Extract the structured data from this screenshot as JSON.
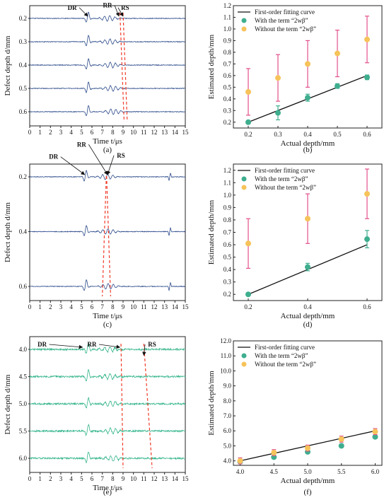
{
  "colors": {
    "axis": "#222222",
    "wave_blue": "#2b4a8a",
    "wave_green": "#35b58c",
    "dashed_red": "#f03c2a",
    "fit_line": "#111111",
    "marker_with": "#3fae8f",
    "marker_without": "#f6c35a",
    "err_without": "#e2508a",
    "err_with": "#3fae8f"
  },
  "chart_data": [
    {
      "id": "a",
      "type": "line",
      "caption": "(a)",
      "xlabel": "Time t/μs",
      "ylabel": "Defect depth d/mm",
      "xlim": [
        0,
        15
      ],
      "xticks": [
        "0",
        "1",
        "2",
        "3",
        "4",
        "5",
        "6",
        "7",
        "8",
        "9",
        "10",
        "11",
        "12",
        "13",
        "14",
        "15"
      ],
      "traces": [
        "0.2",
        "0.3",
        "0.4",
        "0.5",
        "0.6"
      ],
      "wave_color": "blue",
      "pulse_time": 5.6,
      "late_echo": null,
      "annotations": [
        {
          "text": "DR",
          "x": 4.1,
          "row": -0.5,
          "tx": 5.6,
          "trow": 0
        },
        {
          "text": "RR",
          "x": 7.5,
          "row": -0.7,
          "tx": 8.6,
          "trow": 0
        },
        {
          "text": "RS",
          "x": 9.2,
          "row": -0.5,
          "tx": 9.0,
          "trow": 0
        }
      ],
      "dashed_lines": [
        [
          8.7,
          9.1
        ],
        [
          9.0,
          9.4
        ]
      ]
    },
    {
      "id": "b",
      "type": "scatter",
      "caption": "(b)",
      "xlabel": "Actual depth/mm",
      "ylabel": "Estimated depth/mm",
      "xlim": [
        0.15,
        0.65
      ],
      "ylim": [
        0.15,
        1.2
      ],
      "xticks": [
        0.2,
        0.3,
        0.4,
        0.5,
        0.6
      ],
      "xtick_labels": [
        "0.2",
        "0.3",
        "0.4",
        "0.5",
        "0.6"
      ],
      "yticks": [
        0.2,
        0.3,
        0.4,
        0.5,
        0.6,
        0.7,
        0.8,
        0.9,
        1.0,
        1.1,
        1.2
      ],
      "ytick_labels": [
        "0.2",
        "0.3",
        "0.4",
        "0.5",
        "0.6",
        "0.7",
        "0.8",
        "0.9",
        "1.0",
        "1.1",
        "1.2"
      ],
      "legend": [
        "First-order fitting curve",
        "With the term “2wβ”",
        "Without the term “2wβ”"
      ],
      "legend_position": "top-left",
      "fit_line": {
        "x": [
          0.2,
          0.6
        ],
        "y": [
          0.2,
          0.6
        ]
      },
      "series": [
        {
          "x": [
            0.2,
            0.3,
            0.4,
            0.5,
            0.6
          ],
          "values": [
            0.2,
            0.28,
            0.41,
            0.51,
            0.585
          ],
          "err": [
            0.01,
            0.06,
            0.03,
            0.02,
            0.02
          ]
        },
        {
          "x": [
            0.2,
            0.3,
            0.4,
            0.5,
            0.6
          ],
          "values": [
            0.46,
            0.58,
            0.7,
            0.79,
            0.91
          ],
          "err": [
            0.2,
            0.2,
            0.2,
            0.2,
            0.2
          ]
        }
      ]
    },
    {
      "id": "c",
      "type": "line",
      "caption": "(c)",
      "xlabel": "Time t/μs",
      "ylabel": "Defect depth d/mm",
      "xlim": [
        0,
        15
      ],
      "xticks": [
        "0",
        "1",
        "2",
        "3",
        "4",
        "5",
        "6",
        "7",
        "8",
        "9",
        "10",
        "11",
        "12",
        "13",
        "14",
        "15"
      ],
      "traces": [
        "0.2",
        "0.4",
        "0.6"
      ],
      "wave_color": "blue",
      "pulse_time": 5.4,
      "late_echo": 13.5,
      "annotations": [
        {
          "text": "DR",
          "x": 2.3,
          "row": -0.55,
          "tx": 5.3,
          "trow": 0
        },
        {
          "text": "RR",
          "x": 5.0,
          "row": -1.0,
          "tx": 7.5,
          "trow": 0
        },
        {
          "text": "RS",
          "x": 8.8,
          "row": -0.6,
          "tx": 7.5,
          "trow": 0
        }
      ],
      "dashed_lines": [
        [
          7.4,
          7.0
        ],
        [
          7.4,
          7.8
        ]
      ]
    },
    {
      "id": "d",
      "type": "scatter",
      "caption": "(d)",
      "xlabel": "Actual depth/mm",
      "ylabel": "Estimated depth/mm",
      "xlim": [
        0.15,
        0.65
      ],
      "ylim": [
        0.15,
        1.25
      ],
      "xticks": [
        0.2,
        0.4,
        0.6
      ],
      "xtick_labels": [
        "0.2",
        "0.4",
        "0.6"
      ],
      "yticks": [
        0.2,
        0.3,
        0.4,
        0.5,
        0.6,
        0.7,
        0.8,
        0.9,
        1.0,
        1.1,
        1.2
      ],
      "ytick_labels": [
        "0.2",
        "0.3",
        "0.4",
        "0.5",
        "0.6",
        "0.7",
        "0.8",
        "0.9",
        "1.0",
        "1.1",
        "1.2"
      ],
      "legend": [
        "First-order fitting curve",
        "With the term “2wβ”",
        "Without the term “2wβ”"
      ],
      "legend_position": "top-left",
      "fit_line": {
        "x": [
          0.2,
          0.6
        ],
        "y": [
          0.2,
          0.6
        ]
      },
      "series": [
        {
          "x": [
            0.2,
            0.4,
            0.6
          ],
          "values": [
            0.2,
            0.42,
            0.645
          ],
          "err": [
            0.01,
            0.03,
            0.07
          ]
        },
        {
          "x": [
            0.2,
            0.4,
            0.6
          ],
          "values": [
            0.61,
            0.81,
            1.01
          ],
          "err": [
            0.2,
            0.2,
            0.2
          ]
        }
      ]
    },
    {
      "id": "e",
      "type": "line",
      "caption": "(e)",
      "xlabel": "Time t/μs",
      "ylabel": "Defect depth d/mm",
      "xlim": [
        0,
        15
      ],
      "xticks": [
        "0",
        "1",
        "2",
        "3",
        "4",
        "5",
        "6",
        "7",
        "8",
        "9",
        "10",
        "11",
        "12",
        "13",
        "14",
        "15"
      ],
      "traces": [
        "4.0",
        "4.5",
        "5.0",
        "5.5",
        "6.0"
      ],
      "wave_color": "green",
      "pulse_time": 5.6,
      "late_echo": null,
      "annotations": [
        {
          "text": "DR",
          "x": 1.2,
          "row": 0,
          "tx": 5.1,
          "trow": 0
        },
        {
          "text": "RR",
          "x": 6.0,
          "row": 0,
          "tx": 8.7,
          "trow": 0
        },
        {
          "text": "RS",
          "x": 11.8,
          "row": 0,
          "tx": 11.0,
          "trow": 0.3
        }
      ],
      "dashed_lines": [
        [
          8.8,
          9.0
        ],
        [
          11.0,
          11.8
        ]
      ]
    },
    {
      "id": "f",
      "type": "scatter",
      "caption": "(f)",
      "xlabel": "Actual depth/mm",
      "ylabel": "Estimated depth/mm",
      "xlim": [
        3.9,
        6.1
      ],
      "ylim": [
        3.7,
        12.0
      ],
      "xticks": [
        4.0,
        4.5,
        5.0,
        5.5,
        6.0
      ],
      "xtick_labels": [
        "4.0",
        "4.5",
        "5.0",
        "5.5",
        "6.0"
      ],
      "yticks": [
        4.0,
        5.0,
        6.0,
        7.0,
        8.0,
        9.0,
        10.0,
        11.0,
        12.0
      ],
      "ytick_labels": [
        "4.0",
        "5.0",
        "6.0",
        "7.0",
        "8.0",
        "9.0",
        "10.0",
        "11.0",
        "12.0"
      ],
      "legend": [
        "First-order fitting curve",
        "With the term “2wβ”",
        "Without the term “2wβ”"
      ],
      "legend_position": "top-left",
      "fit_line": {
        "x": [
          4.0,
          6.0
        ],
        "y": [
          4.0,
          6.0
        ]
      },
      "series": [
        {
          "x": [
            4.0,
            4.5,
            5.0,
            5.5,
            6.0
          ],
          "values": [
            3.95,
            4.25,
            4.6,
            5.0,
            5.6
          ],
          "err": [
            0.05,
            0.1,
            0.1,
            0.1,
            0.1
          ]
        },
        {
          "x": [
            4.0,
            4.5,
            5.0,
            5.5,
            6.0
          ],
          "values": [
            4.0,
            4.55,
            4.85,
            5.45,
            5.95
          ],
          "err": [
            0.2,
            0.2,
            0.2,
            0.2,
            0.2
          ]
        }
      ]
    }
  ]
}
